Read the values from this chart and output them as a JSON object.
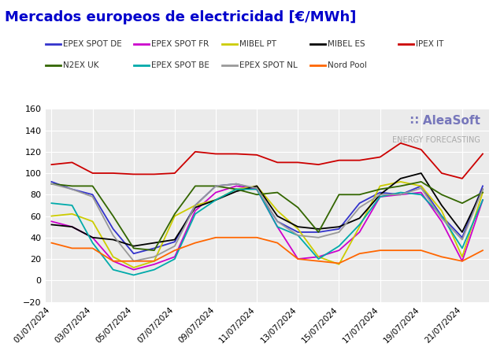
{
  "title": "Mercados europeos de electricidad [€/MWh]",
  "title_color": "#0000cc",
  "background_color": "#ffffff",
  "plot_bg_color": "#ebebeb",
  "grid_color": "#ffffff",
  "ylim": [
    -20,
    160
  ],
  "yticks": [
    -20,
    0,
    20,
    40,
    60,
    80,
    100,
    120,
    140,
    160
  ],
  "xtick_labels": [
    "01/07/2024",
    "03/07/2024",
    "05/07/2024",
    "07/07/2024",
    "09/07/2024",
    "11/07/2024",
    "13/07/2024",
    "15/07/2024",
    "17/07/2024",
    "19/07/2024",
    "21/07/2024"
  ],
  "series": {
    "EPEX SPOT DE": {
      "color": "#3333cc",
      "values": [
        92,
        85,
        80,
        48,
        25,
        30,
        36,
        70,
        88,
        90,
        85,
        55,
        45,
        45,
        48,
        72,
        82,
        80,
        88,
        60,
        40,
        88
      ]
    },
    "EPEX SPOT FR": {
      "color": "#cc00cc",
      "values": [
        55,
        50,
        40,
        18,
        10,
        15,
        22,
        65,
        82,
        88,
        85,
        50,
        20,
        22,
        28,
        45,
        78,
        80,
        82,
        55,
        18,
        75
      ]
    },
    "MIBEL PT": {
      "color": "#cccc00",
      "values": [
        60,
        62,
        55,
        22,
        12,
        18,
        60,
        70,
        75,
        85,
        88,
        65,
        48,
        22,
        15,
        50,
        88,
        92,
        88,
        65,
        22,
        82
      ]
    },
    "MIBEL ES": {
      "color": "#000000",
      "values": [
        52,
        50,
        40,
        38,
        32,
        35,
        38,
        68,
        75,
        83,
        88,
        60,
        50,
        48,
        50,
        58,
        80,
        95,
        100,
        70,
        45,
        85
      ]
    },
    "IPEX IT": {
      "color": "#cc0000",
      "values": [
        108,
        110,
        100,
        100,
        99,
        99,
        100,
        120,
        118,
        118,
        117,
        110,
        110,
        108,
        112,
        112,
        115,
        128,
        122,
        100,
        95,
        118
      ]
    },
    "N2EX UK": {
      "color": "#336600",
      "values": [
        90,
        88,
        88,
        60,
        30,
        28,
        62,
        88,
        88,
        85,
        80,
        82,
        68,
        45,
        80,
        80,
        85,
        88,
        92,
        80,
        72,
        82
      ]
    },
    "EPEX SPOT BE": {
      "color": "#00aaaa",
      "values": [
        72,
        70,
        35,
        10,
        5,
        10,
        20,
        62,
        75,
        85,
        85,
        50,
        42,
        20,
        32,
        52,
        78,
        82,
        80,
        60,
        30,
        75
      ]
    },
    "EPEX SPOT NL": {
      "color": "#999999",
      "values": [
        90,
        85,
        78,
        42,
        18,
        22,
        32,
        70,
        88,
        90,
        86,
        55,
        42,
        40,
        45,
        68,
        80,
        80,
        86,
        58,
        38,
        85
      ]
    },
    "Nord Pool": {
      "color": "#ff6600",
      "values": [
        35,
        30,
        30,
        18,
        18,
        18,
        28,
        35,
        40,
        40,
        40,
        35,
        20,
        18,
        16,
        25,
        28,
        28,
        28,
        22,
        18,
        28
      ]
    }
  },
  "legend_row1": [
    "EPEX SPOT DE",
    "EPEX SPOT FR",
    "MIBEL PT",
    "MIBEL ES",
    "IPEX IT"
  ],
  "legend_row2": [
    "N2EX UK",
    "EPEX SPOT BE",
    "EPEX SPOT NL",
    "Nord Pool"
  ],
  "watermark_line1": "∷ AleaSoft",
  "watermark_line2": "ENERGY FORECASTING",
  "watermark_color1": "#7777bb",
  "watermark_color2": "#aaaaaa"
}
